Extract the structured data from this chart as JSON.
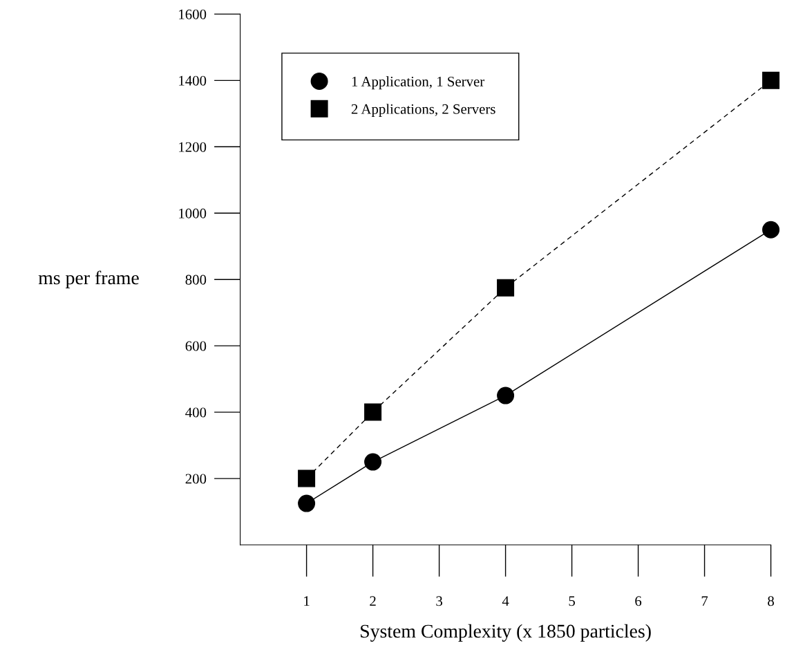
{
  "chart_data": {
    "type": "line",
    "xlabel": "System Complexity (x 1850 particles)",
    "ylabel": "ms per frame",
    "xlim": [
      0,
      8
    ],
    "xticks": [
      1,
      2,
      3,
      4,
      5,
      6,
      7,
      8
    ],
    "ylim": [
      0,
      1600
    ],
    "yticks": [
      200,
      400,
      600,
      800,
      1000,
      1200,
      1400,
      1600
    ],
    "legend": "top left",
    "series": [
      {
        "name": "1 Application, 1 Server",
        "color": "#000000",
        "marker": "circle",
        "line_style": "solid",
        "x": [
          1,
          2,
          4,
          8
        ],
        "values": [
          125,
          250,
          450,
          950
        ]
      },
      {
        "name": "2 Applications, 2 Servers",
        "color": "#000000",
        "marker": "square",
        "line_style": "dashed",
        "x": [
          1,
          2,
          4,
          8
        ],
        "values": [
          200,
          400,
          775,
          1400
        ]
      }
    ]
  }
}
